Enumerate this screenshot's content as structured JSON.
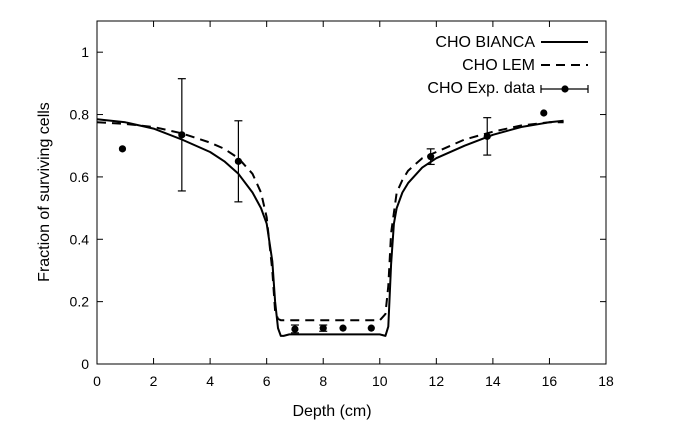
{
  "chart_data": {
    "type": "line",
    "title": "",
    "xlabel": "Depth (cm)",
    "ylabel": "Fraction of surviving cells",
    "xlim": [
      0,
      18
    ],
    "ylim": [
      0,
      1.1
    ],
    "xticks": [
      0,
      2,
      4,
      6,
      8,
      10,
      12,
      14,
      16,
      18
    ],
    "yticks": [
      0,
      0.2,
      0.4,
      0.6,
      0.8,
      1
    ],
    "grid": false,
    "legend_position": "top-right",
    "series": [
      {
        "name": "CHO BIANCA",
        "style": "solid",
        "x": [
          0,
          1,
          2,
          3,
          4,
          4.5,
          5,
          5.5,
          5.8,
          6.0,
          6.2,
          6.3,
          6.4,
          6.5,
          6.6,
          6.8,
          7,
          8,
          9,
          10,
          10.2,
          10.3,
          10.4,
          10.5,
          10.6,
          10.8,
          11,
          11.5,
          12,
          13,
          14,
          15,
          16,
          16.5
        ],
        "y": [
          0.785,
          0.775,
          0.755,
          0.72,
          0.68,
          0.65,
          0.61,
          0.55,
          0.5,
          0.45,
          0.33,
          0.2,
          0.115,
          0.09,
          0.09,
          0.095,
          0.095,
          0.095,
          0.095,
          0.095,
          0.09,
          0.12,
          0.32,
          0.45,
          0.5,
          0.55,
          0.58,
          0.63,
          0.66,
          0.7,
          0.735,
          0.76,
          0.775,
          0.78
        ]
      },
      {
        "name": "CHO LEM",
        "style": "dashed",
        "x": [
          0,
          1,
          2,
          3,
          4,
          4.5,
          5,
          5.5,
          5.8,
          6.0,
          6.2,
          6.3,
          6.4,
          6.5,
          7,
          8,
          9,
          10,
          10.2,
          10.3,
          10.4,
          10.6,
          10.8,
          11,
          11.5,
          12,
          13,
          14,
          15,
          16,
          16.5
        ],
        "y": [
          0.775,
          0.77,
          0.76,
          0.74,
          0.71,
          0.69,
          0.66,
          0.61,
          0.55,
          0.47,
          0.3,
          0.17,
          0.145,
          0.14,
          0.14,
          0.14,
          0.14,
          0.14,
          0.16,
          0.25,
          0.42,
          0.55,
          0.59,
          0.62,
          0.66,
          0.68,
          0.72,
          0.745,
          0.765,
          0.775,
          0.775
        ]
      },
      {
        "name": "CHO Exp. data",
        "style": "points",
        "x": [
          0.9,
          3.0,
          5.0,
          7.0,
          8.0,
          8.7,
          9.7,
          11.8,
          13.8,
          15.8
        ],
        "y": [
          0.69,
          0.735,
          0.65,
          0.112,
          0.115,
          0.115,
          0.115,
          0.665,
          0.73,
          0.805
        ],
        "yerr_low": [
          0.69,
          0.555,
          0.52,
          0.1,
          0.105,
          0.115,
          0.115,
          0.64,
          0.67,
          0.805
        ],
        "yerr_high": [
          0.69,
          0.915,
          0.78,
          0.125,
          0.125,
          0.115,
          0.115,
          0.69,
          0.79,
          0.805
        ]
      }
    ]
  }
}
